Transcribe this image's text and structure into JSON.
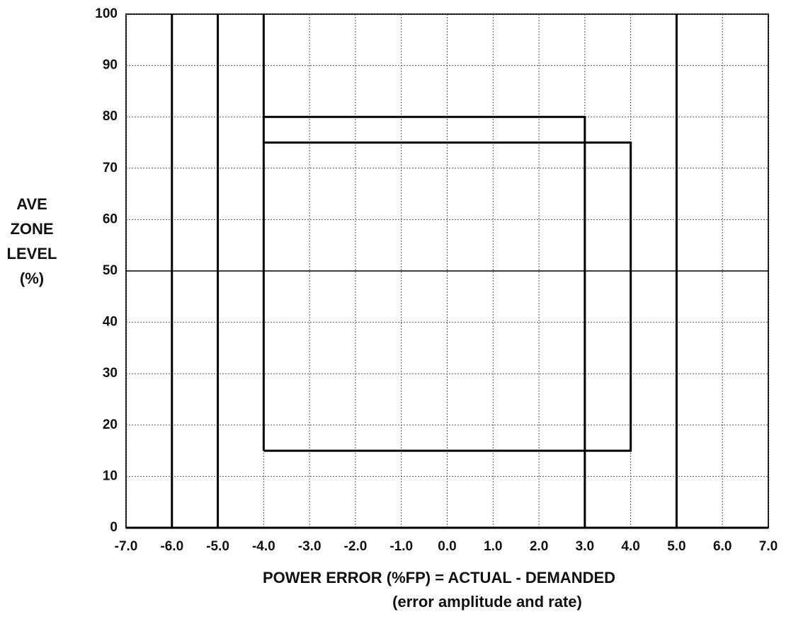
{
  "chart_data": {
    "type": "line",
    "ylabel": [
      "AVE",
      "ZONE",
      "LEVEL",
      "(%)"
    ],
    "xlabel": [
      "POWER ERROR (%FP) = ACTUAL - DEMANDED",
      "(error amplitude and rate)"
    ],
    "xlim": [
      -7,
      7
    ],
    "ylim": [
      0,
      100
    ],
    "xticks": [
      {
        "value": -7,
        "label": "-7.0"
      },
      {
        "value": -6,
        "label": "-6.0"
      },
      {
        "value": -5,
        "label": "-5.0"
      },
      {
        "value": -4,
        "label": "-4.0"
      },
      {
        "value": -3,
        "label": "-3.0"
      },
      {
        "value": -2,
        "label": "-2.0"
      },
      {
        "value": -1,
        "label": "-1.0"
      },
      {
        "value": 0,
        "label": "0.0"
      },
      {
        "value": 1,
        "label": "1.0"
      },
      {
        "value": 2,
        "label": "2.0"
      },
      {
        "value": 3,
        "label": "3.0"
      },
      {
        "value": 4,
        "label": "4.0"
      },
      {
        "value": 5,
        "label": "5.0"
      },
      {
        "value": 6,
        "label": "6.0"
      },
      {
        "value": 7,
        "label": "7.0"
      }
    ],
    "yticks": [
      0,
      10,
      20,
      30,
      40,
      50,
      60,
      70,
      80,
      90,
      100
    ],
    "grid": true,
    "color": "#000000",
    "series": [
      {
        "color": "#000000",
        "line_width": 3,
        "x": [
          -6,
          -6
        ],
        "values": [
          0,
          100
        ]
      },
      {
        "color": "#000000",
        "line_width": 3,
        "x": [
          -5,
          -5
        ],
        "values": [
          0,
          100
        ]
      },
      {
        "color": "#000000",
        "line_width": 3,
        "x": [
          5,
          5
        ],
        "values": [
          0,
          100
        ]
      },
      {
        "color": "#000000",
        "line_width": 3,
        "x": [
          -4,
          -4
        ],
        "values": [
          100,
          15
        ]
      },
      {
        "color": "#000000",
        "line_width": 3,
        "x": [
          -4,
          3,
          3
        ],
        "values": [
          80,
          80,
          0
        ]
      },
      {
        "color": "#000000",
        "line_width": 3,
        "x": [
          -4,
          4,
          4,
          -4
        ],
        "values": [
          75,
          75,
          15,
          15
        ]
      },
      {
        "color": "#000000",
        "line_width": 1.5,
        "x": [
          -7,
          7
        ],
        "values": [
          50,
          50
        ]
      },
      {
        "color": "#000000",
        "line_width": 3,
        "x": [
          -7,
          7
        ],
        "values": [
          0,
          0
        ]
      }
    ]
  }
}
